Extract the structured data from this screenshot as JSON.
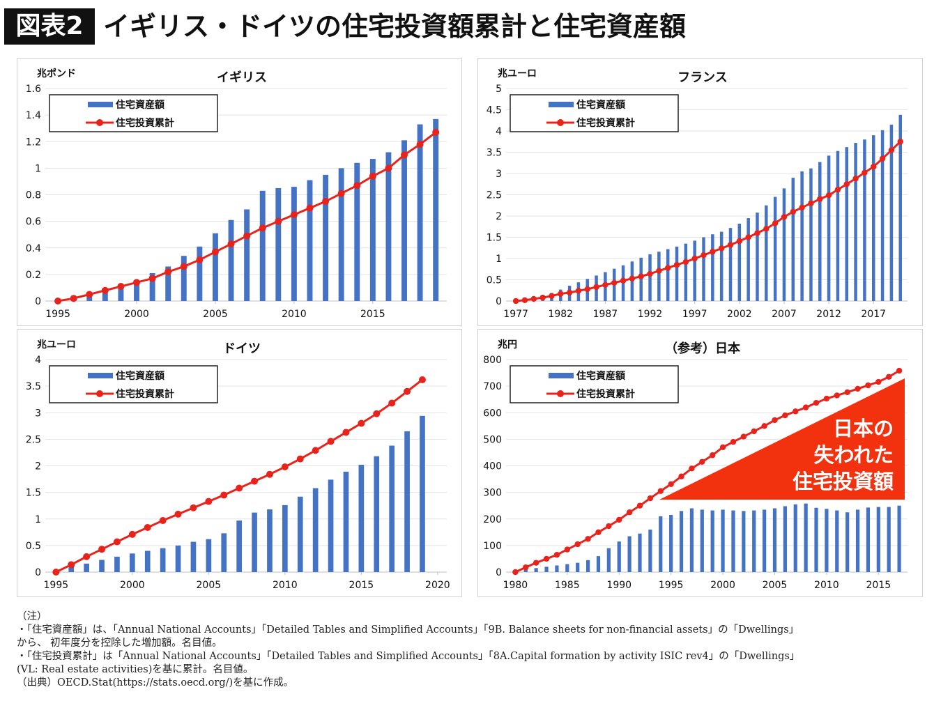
{
  "header": {
    "badge": "図表2",
    "title": "イギリス・ドイツの住宅投資額累計と住宅資産額"
  },
  "chart_data": [
    {
      "type": "combo",
      "title": "イギリス",
      "y_label": "兆ポンド",
      "grid": true,
      "legend": "upper-left",
      "x": [
        1995,
        1996,
        1997,
        1998,
        1999,
        2000,
        2001,
        2002,
        2003,
        2004,
        2005,
        2006,
        2007,
        2008,
        2009,
        2010,
        2011,
        2012,
        2013,
        2014,
        2015,
        2016,
        2017,
        2018,
        2019
      ],
      "xlim": [
        1994.2,
        2019.7
      ],
      "xticks": [
        1995,
        2000,
        2005,
        2010,
        2015
      ],
      "ylim": [
        0,
        1.6
      ],
      "yticks": [
        0,
        0.2,
        0.4,
        0.6,
        0.8,
        1,
        1.2,
        1.4,
        1.6
      ],
      "series": [
        {
          "name": "住宅資産額",
          "type": "bar",
          "color": "#4472c4",
          "values": [
            0,
            0.02,
            0.05,
            0.08,
            0.12,
            0.15,
            0.21,
            0.26,
            0.34,
            0.41,
            0.51,
            0.61,
            0.69,
            0.83,
            0.85,
            0.86,
            0.91,
            0.95,
            1.0,
            1.04,
            1.07,
            1.12,
            1.21,
            1.33,
            1.37
          ]
        },
        {
          "name": "住宅投資累計",
          "type": "line",
          "color": "#e8231b",
          "values": [
            0,
            0.02,
            0.05,
            0.08,
            0.11,
            0.14,
            0.17,
            0.22,
            0.26,
            0.31,
            0.37,
            0.43,
            0.49,
            0.55,
            0.6,
            0.65,
            0.7,
            0.75,
            0.81,
            0.87,
            0.94,
            1.0,
            1.1,
            1.18,
            1.27
          ]
        }
      ]
    },
    {
      "type": "combo",
      "title": "フランス",
      "y_label": "兆ユーロ",
      "grid": true,
      "legend": "upper-left",
      "x": [
        1977,
        1978,
        1979,
        1980,
        1981,
        1982,
        1983,
        1984,
        1985,
        1986,
        1987,
        1988,
        1989,
        1990,
        1991,
        1992,
        1993,
        1994,
        1995,
        1996,
        1997,
        1998,
        1999,
        2000,
        2001,
        2002,
        2003,
        2004,
        2005,
        2006,
        2007,
        2008,
        2009,
        2010,
        2011,
        2012,
        2013,
        2014,
        2015,
        2016,
        2017,
        2018,
        2019,
        2020
      ],
      "xlim": [
        1975.9,
        2020.8
      ],
      "xticks": [
        1977,
        1982,
        1987,
        1992,
        1997,
        2002,
        2007,
        2012,
        2017
      ],
      "ylim": [
        0,
        5
      ],
      "yticks": [
        0,
        0.5,
        1,
        1.5,
        2,
        2.5,
        3,
        3.5,
        4,
        4.5,
        5
      ],
      "series": [
        {
          "name": "住宅資産額",
          "type": "bar",
          "color": "#4472c4",
          "values": [
            0,
            0.03,
            0.07,
            0.12,
            0.19,
            0.27,
            0.36,
            0.44,
            0.52,
            0.6,
            0.68,
            0.76,
            0.84,
            0.93,
            1.02,
            1.1,
            1.16,
            1.22,
            1.28,
            1.35,
            1.42,
            1.5,
            1.57,
            1.63,
            1.72,
            1.82,
            1.95,
            2.08,
            2.25,
            2.45,
            2.65,
            2.9,
            3.05,
            3.12,
            3.27,
            3.42,
            3.53,
            3.62,
            3.72,
            3.8,
            3.9,
            4.02,
            4.15,
            4.38
          ]
        },
        {
          "name": "住宅投資累計",
          "type": "line",
          "color": "#e8231b",
          "values": [
            0,
            0.02,
            0.05,
            0.08,
            0.12,
            0.17,
            0.2,
            0.24,
            0.28,
            0.33,
            0.38,
            0.43,
            0.48,
            0.53,
            0.58,
            0.64,
            0.71,
            0.78,
            0.85,
            0.92,
            1.0,
            1.08,
            1.16,
            1.24,
            1.32,
            1.41,
            1.5,
            1.6,
            1.7,
            1.83,
            1.98,
            2.1,
            2.2,
            2.3,
            2.4,
            2.49,
            2.62,
            2.75,
            2.88,
            3.02,
            3.16,
            3.35,
            3.55,
            3.75
          ]
        }
      ]
    },
    {
      "type": "combo",
      "title": "ドイツ",
      "y_label": "兆ユーロ",
      "grid": true,
      "legend": "upper-left",
      "x": [
        1995,
        1996,
        1997,
        1998,
        1999,
        2000,
        2001,
        2002,
        2003,
        2004,
        2005,
        2006,
        2007,
        2008,
        2009,
        2010,
        2011,
        2012,
        2013,
        2014,
        2015,
        2016,
        2017,
        2018,
        2019
      ],
      "xlim": [
        1994.3,
        2020.6
      ],
      "xticks": [
        1995,
        2000,
        2005,
        2010,
        2015,
        2020
      ],
      "ylim": [
        0,
        4
      ],
      "yticks": [
        0,
        0.5,
        1,
        1.5,
        2,
        2.5,
        3,
        3.5,
        4
      ],
      "series": [
        {
          "name": "住宅資産額",
          "type": "bar",
          "color": "#4472c4",
          "values": [
            0,
            0.1,
            0.16,
            0.23,
            0.29,
            0.35,
            0.4,
            0.45,
            0.5,
            0.57,
            0.62,
            0.73,
            0.97,
            1.12,
            1.18,
            1.26,
            1.42,
            1.58,
            1.74,
            1.89,
            2.02,
            2.18,
            2.38,
            2.65,
            2.94
          ]
        },
        {
          "name": "住宅投資累計",
          "type": "line",
          "color": "#e8231b",
          "values": [
            0,
            0.14,
            0.29,
            0.43,
            0.57,
            0.71,
            0.84,
            0.97,
            1.09,
            1.21,
            1.33,
            1.45,
            1.58,
            1.71,
            1.84,
            1.98,
            2.13,
            2.29,
            2.46,
            2.63,
            2.8,
            2.98,
            3.18,
            3.4,
            3.62
          ]
        }
      ]
    },
    {
      "type": "combo",
      "title": "（参考）日本",
      "y_label": "兆円",
      "grid": true,
      "legend": "upper-left",
      "annotation_lines": [
        "日本の",
        "失われた",
        "住宅投資額"
      ],
      "x": [
        1980,
        1981,
        1982,
        1983,
        1984,
        1985,
        1986,
        1987,
        1988,
        1989,
        1990,
        1991,
        1992,
        1993,
        1994,
        1995,
        1996,
        1997,
        1998,
        1999,
        2000,
        2001,
        2002,
        2003,
        2004,
        2005,
        2006,
        2007,
        2008,
        2009,
        2010,
        2011,
        2012,
        2013,
        2014,
        2015,
        2016,
        2017
      ],
      "xlim": [
        1979.1,
        2017.8
      ],
      "xticks": [
        1980,
        1985,
        1990,
        1995,
        2000,
        2005,
        2010,
        2015
      ],
      "ylim": [
        0,
        800
      ],
      "yticks": [
        0,
        100,
        200,
        300,
        400,
        500,
        600,
        700,
        800
      ],
      "series": [
        {
          "name": "住宅資産額",
          "type": "bar",
          "color": "#4472c4",
          "values": [
            0,
            10,
            15,
            20,
            25,
            30,
            35,
            45,
            60,
            90,
            115,
            135,
            145,
            160,
            210,
            215,
            230,
            240,
            235,
            232,
            235,
            232,
            230,
            232,
            235,
            240,
            248,
            255,
            258,
            242,
            238,
            232,
            225,
            235,
            243,
            245,
            245,
            250
          ]
        },
        {
          "name": "住宅投資累計",
          "type": "line",
          "color": "#e8231b",
          "values": [
            0,
            18,
            35,
            50,
            65,
            85,
            105,
            125,
            150,
            173,
            197,
            225,
            250,
            278,
            305,
            331,
            360,
            390,
            415,
            440,
            470,
            490,
            510,
            530,
            550,
            572,
            590,
            605,
            620,
            637,
            653,
            665,
            677,
            690,
            703,
            716,
            735,
            758
          ]
        }
      ]
    }
  ],
  "notes": [
    "（注）",
    "・「住宅資産額」は、「Annual National Accounts」「Detailed Tables and Simplified Accounts」「9B. Balance sheets for non-financial assets」の「Dwellings」",
    "から、 初年度分を控除した増加額。名目値。",
    "・「住宅投資累計」は「Annual National Accounts」「Detailed Tables and Simplified Accounts」「8A.Capital formation by activity ISIC rev4」の「Dwellings」",
    "(VL: Real estate activities)を基に累計。名目値。",
    "（出典）OECD.Stat(https://stats.oecd.org/)を基に作成。"
  ]
}
